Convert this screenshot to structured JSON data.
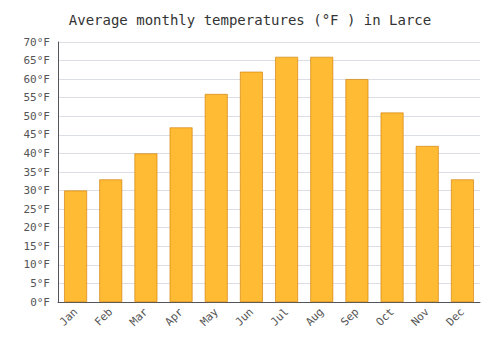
{
  "chart_data": {
    "type": "bar",
    "title": "Average monthly temperatures (°F ) in Larce",
    "categories": [
      "Jan",
      "Feb",
      "Mar",
      "Apr",
      "May",
      "Jun",
      "Jul",
      "Aug",
      "Sep",
      "Oct",
      "Nov",
      "Dec"
    ],
    "values": [
      30,
      33,
      40,
      47,
      56,
      62,
      66,
      66,
      60,
      51,
      42,
      33
    ],
    "color": "#FFBB33",
    "ylim": [
      0,
      70
    ],
    "yticks": [
      {
        "value": 0,
        "label": "0°F"
      },
      {
        "value": 5,
        "label": "5°F"
      },
      {
        "value": 10,
        "label": "10°F"
      },
      {
        "value": 15,
        "label": "15°F"
      },
      {
        "value": 20,
        "label": "20°F"
      },
      {
        "value": 25,
        "label": "25°F"
      },
      {
        "value": 30,
        "label": "30°F"
      },
      {
        "value": 35,
        "label": "35°F"
      },
      {
        "value": 40,
        "label": "40°F"
      },
      {
        "value": 45,
        "label": "45°F"
      },
      {
        "value": 50,
        "label": "50°F"
      },
      {
        "value": 55,
        "label": "55°F"
      },
      {
        "value": 60,
        "label": "60°F"
      },
      {
        "value": 65,
        "label": "65°F"
      },
      {
        "value": 70,
        "label": "70°F"
      }
    ],
    "grid": true
  }
}
